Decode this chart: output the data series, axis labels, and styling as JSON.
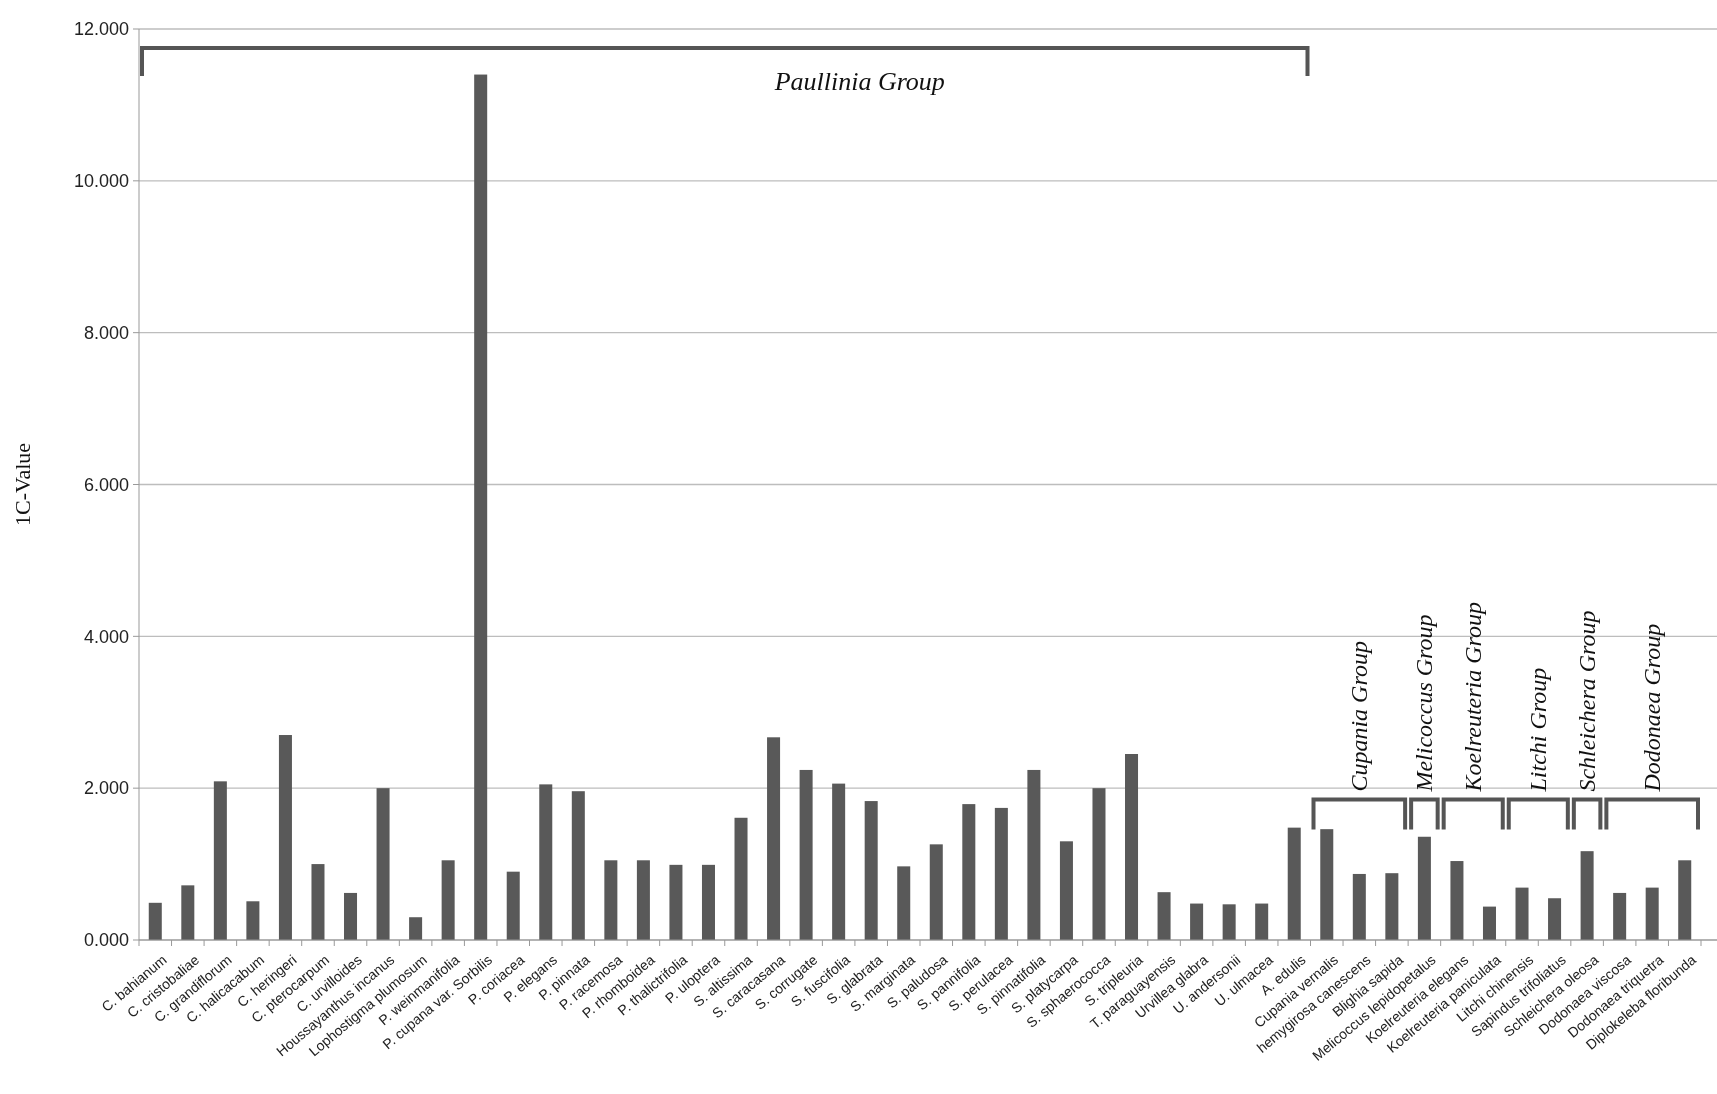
{
  "chart_data": {
    "type": "bar",
    "ylabel": "1C-Value",
    "categories": [
      "C. bahianum",
      "C. cristobaliae",
      "C. grandiflorum",
      "C. halicacabum",
      "C. heringeri",
      "C. pterocarpum",
      "C. urvilloides",
      "Houssayanthus incanus",
      "Lophostigma plumosum",
      "P. weinmanifolia",
      "P. cupana var. Sorbilis",
      "P. coriacea",
      "P. elegans",
      "P. pinnata",
      "P. racemosa",
      "P. rhomboidea",
      "P. thalictrifolia",
      "P. uloptera",
      "S. altissima",
      "S. caracasana",
      "S. corrugate",
      "S. fuscifolia",
      "S. glabrata",
      "S. marginata",
      "S. paludosa",
      "S. pannifolia",
      "S. perulacea",
      "S. pinnatifolia",
      "S. platycarpa",
      "S. sphaerococca",
      "S. tripleuria",
      "T. paraguayensis",
      "Urvillea glabra",
      "U. andersonii",
      "U. ulmacea",
      "A. edulis",
      "Cupania vernalis",
      "hemygirosa canescens",
      "Blighia sapida",
      "Melicoccus lepidopetalus",
      "Koelreuteria elegans",
      "Koelreuteria paniculata",
      "Litchi chinensis",
      "Sapindus trifoliatus",
      "Schleichera oleosa",
      "Dodonaea viscosa",
      "Dodonaea triquetra",
      "Diplokeleba floribunda"
    ],
    "values": [
      0.49,
      0.72,
      2.09,
      0.51,
      2.7,
      1.0,
      0.62,
      2.0,
      0.3,
      1.05,
      11.4,
      0.9,
      2.05,
      1.96,
      1.05,
      1.05,
      0.99,
      0.99,
      1.61,
      2.67,
      2.24,
      2.06,
      1.83,
      0.97,
      1.26,
      1.79,
      1.74,
      2.24,
      1.3,
      2.0,
      2.45,
      0.63,
      0.48,
      0.47,
      0.48,
      1.48,
      1.46,
      0.87,
      0.88,
      1.36,
      1.04,
      0.44,
      0.69,
      0.55,
      1.17,
      0.62,
      0.69,
      1.05
    ],
    "color": "#595959",
    "ylim": [
      0,
      12
    ],
    "yticks": [
      {
        "value": 0,
        "label": "0.000"
      },
      {
        "value": 2,
        "label": "2.000"
      },
      {
        "value": 4,
        "label": "4.000"
      },
      {
        "value": 6,
        "label": "6.000"
      },
      {
        "value": 8,
        "label": "8.000"
      },
      {
        "value": 10,
        "label": "10.000"
      },
      {
        "value": 12,
        "label": "12.000"
      }
    ],
    "grid": "y",
    "annotations": [
      "Paullinia Group",
      "Cupania Group",
      "Melicoccus Group",
      "Koelreuteria Group",
      "Litchi Group",
      "Schleichera Group",
      "Dodonaea Group"
    ]
  }
}
